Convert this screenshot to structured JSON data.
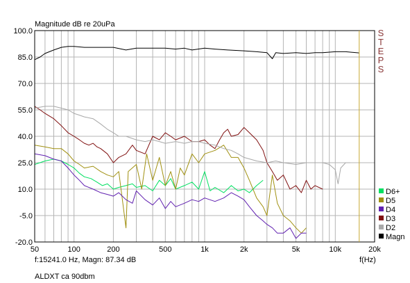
{
  "chart_data": {
    "type": "line",
    "title": "Magnitude dB re 20uPa",
    "xlabel": "f(Hz)",
    "x_scale": "log",
    "xlim": [
      50,
      20000
    ],
    "ylim": [
      -20,
      100
    ],
    "x_ticks": [
      {
        "value": 50,
        "label": "50"
      },
      {
        "value": 100,
        "label": "100"
      },
      {
        "value": 200,
        "label": "200"
      },
      {
        "value": 500,
        "label": "500"
      },
      {
        "value": 1000,
        "label": "1k"
      },
      {
        "value": 2000,
        "label": "2k"
      },
      {
        "value": 5000,
        "label": "5k"
      },
      {
        "value": 10000,
        "label": "10k"
      },
      {
        "value": 20000,
        "label": "20k"
      }
    ],
    "y_ticks": [
      {
        "value": 100,
        "label": "100.0"
      },
      {
        "value": 85,
        "label": "85.0"
      },
      {
        "value": 70,
        "label": "70.0"
      },
      {
        "value": 55,
        "label": "55.0"
      },
      {
        "value": 40,
        "label": "40.0"
      },
      {
        "value": 25,
        "label": "25.0"
      },
      {
        "value": 10,
        "label": "10.0"
      },
      {
        "value": -5,
        "label": "-5.0"
      },
      {
        "value": -20,
        "label": "-20.0"
      }
    ],
    "grid": true,
    "side_label": "STEPS",
    "cursor": {
      "x": 15241,
      "color": "#c8a830"
    },
    "readout": "f:15241.0 Hz, Magn: 87.34 dB",
    "legend_placement": "right",
    "series": [
      {
        "name": "D6+",
        "color": "#00e060",
        "points": [
          [
            50,
            24
          ],
          [
            60,
            26
          ],
          [
            70,
            27
          ],
          [
            80,
            26
          ],
          [
            90,
            24
          ],
          [
            100,
            22
          ],
          [
            110,
            19
          ],
          [
            120,
            17
          ],
          [
            135,
            16
          ],
          [
            150,
            14
          ],
          [
            165,
            12
          ],
          [
            180,
            13
          ],
          [
            200,
            10
          ],
          [
            220,
            11
          ],
          [
            250,
            12
          ],
          [
            280,
            13
          ],
          [
            300,
            11
          ],
          [
            350,
            12
          ],
          [
            400,
            9
          ],
          [
            450,
            15
          ],
          [
            500,
            12
          ],
          [
            550,
            16
          ],
          [
            600,
            10
          ],
          [
            700,
            12
          ],
          [
            800,
            14
          ],
          [
            900,
            10
          ],
          [
            1000,
            20
          ],
          [
            1100,
            9
          ],
          [
            1200,
            11
          ],
          [
            1400,
            8
          ],
          [
            1600,
            12
          ],
          [
            1800,
            9
          ],
          [
            2000,
            10
          ],
          [
            2200,
            8
          ],
          [
            2500,
            12
          ],
          [
            2800,
            15
          ]
        ]
      },
      {
        "name": "D5",
        "color": "#a09010",
        "points": [
          [
            50,
            35
          ],
          [
            60,
            34
          ],
          [
            70,
            33
          ],
          [
            80,
            33
          ],
          [
            90,
            30
          ],
          [
            100,
            26
          ],
          [
            110,
            24
          ],
          [
            120,
            22
          ],
          [
            140,
            23
          ],
          [
            160,
            20
          ],
          [
            180,
            18
          ],
          [
            200,
            17
          ],
          [
            220,
            20
          ],
          [
            250,
            -12
          ],
          [
            260,
            20
          ],
          [
            300,
            24
          ],
          [
            330,
            10
          ],
          [
            360,
            30
          ],
          [
            400,
            15
          ],
          [
            450,
            28
          ],
          [
            500,
            12
          ],
          [
            550,
            20
          ],
          [
            600,
            10
          ],
          [
            650,
            22
          ],
          [
            700,
            18
          ],
          [
            800,
            30
          ],
          [
            900,
            25
          ],
          [
            1000,
            30
          ],
          [
            1200,
            32
          ],
          [
            1400,
            35
          ],
          [
            1600,
            28
          ],
          [
            1800,
            28
          ],
          [
            2000,
            22
          ],
          [
            2200,
            15
          ],
          [
            2500,
            5
          ],
          [
            2800,
            0
          ],
          [
            3000,
            -5
          ],
          [
            3300,
            18
          ],
          [
            3600,
            2
          ],
          [
            4000,
            -5
          ],
          [
            4500,
            -8
          ],
          [
            5000,
            -12
          ],
          [
            5500,
            -15
          ],
          [
            6000,
            -12
          ]
        ]
      },
      {
        "name": "D4",
        "color": "#6020b0",
        "points": [
          [
            50,
            30
          ],
          [
            60,
            29
          ],
          [
            70,
            27
          ],
          [
            80,
            26
          ],
          [
            90,
            22
          ],
          [
            100,
            18
          ],
          [
            110,
            15
          ],
          [
            120,
            12
          ],
          [
            140,
            10
          ],
          [
            160,
            8
          ],
          [
            180,
            7
          ],
          [
            200,
            6
          ],
          [
            220,
            8
          ],
          [
            250,
            4
          ],
          [
            280,
            2
          ],
          [
            300,
            9
          ],
          [
            350,
            4
          ],
          [
            400,
            1
          ],
          [
            450,
            5
          ],
          [
            500,
            -1
          ],
          [
            550,
            3
          ],
          [
            600,
            0
          ],
          [
            700,
            2
          ],
          [
            800,
            4
          ],
          [
            900,
            3
          ],
          [
            1000,
            5
          ],
          [
            1200,
            3
          ],
          [
            1400,
            5
          ],
          [
            1600,
            8
          ],
          [
            1800,
            6
          ],
          [
            2000,
            4
          ],
          [
            2200,
            0
          ],
          [
            2500,
            -5
          ],
          [
            2800,
            -8
          ],
          [
            3000,
            -10
          ],
          [
            3300,
            -12
          ],
          [
            3600,
            -15
          ],
          [
            4000,
            -15
          ],
          [
            4500,
            -12
          ],
          [
            5000,
            -18
          ],
          [
            5500,
            -15
          ],
          [
            6000,
            -15
          ]
        ]
      },
      {
        "name": "D3",
        "color": "#801010",
        "points": [
          [
            50,
            57
          ],
          [
            55,
            55
          ],
          [
            60,
            53
          ],
          [
            70,
            50
          ],
          [
            80,
            46
          ],
          [
            90,
            42
          ],
          [
            100,
            40
          ],
          [
            110,
            38
          ],
          [
            120,
            36
          ],
          [
            130,
            35
          ],
          [
            140,
            36
          ],
          [
            150,
            34
          ],
          [
            160,
            33
          ],
          [
            180,
            30
          ],
          [
            200,
            25
          ],
          [
            220,
            28
          ],
          [
            250,
            30
          ],
          [
            280,
            35
          ],
          [
            300,
            32
          ],
          [
            350,
            30
          ],
          [
            400,
            40
          ],
          [
            450,
            38
          ],
          [
            500,
            42
          ],
          [
            550,
            40
          ],
          [
            600,
            38
          ],
          [
            700,
            40
          ],
          [
            800,
            37
          ],
          [
            900,
            37
          ],
          [
            1000,
            38
          ],
          [
            1100,
            35
          ],
          [
            1200,
            33
          ],
          [
            1300,
            38
          ],
          [
            1400,
            42
          ],
          [
            1500,
            44
          ],
          [
            1600,
            40
          ],
          [
            1800,
            41
          ],
          [
            2000,
            45
          ],
          [
            2200,
            42
          ],
          [
            2500,
            38
          ],
          [
            2800,
            32
          ],
          [
            3000,
            25
          ],
          [
            3300,
            20
          ],
          [
            3600,
            15
          ],
          [
            4000,
            18
          ],
          [
            4500,
            10
          ],
          [
            5000,
            12
          ],
          [
            5500,
            8
          ],
          [
            6000,
            15
          ],
          [
            6500,
            10
          ],
          [
            7000,
            12
          ],
          [
            8000,
            10
          ]
        ]
      },
      {
        "name": "D2",
        "color": "#a8a8a8",
        "points": [
          [
            50,
            56
          ],
          [
            60,
            57
          ],
          [
            70,
            57
          ],
          [
            80,
            56
          ],
          [
            90,
            55
          ],
          [
            100,
            53
          ],
          [
            110,
            52
          ],
          [
            120,
            51
          ],
          [
            140,
            50
          ],
          [
            160,
            47
          ],
          [
            180,
            44
          ],
          [
            200,
            42
          ],
          [
            220,
            40
          ],
          [
            250,
            40
          ],
          [
            300,
            38
          ],
          [
            350,
            37
          ],
          [
            400,
            38
          ],
          [
            450,
            37
          ],
          [
            500,
            36
          ],
          [
            600,
            37
          ],
          [
            700,
            36
          ],
          [
            800,
            37
          ],
          [
            900,
            37
          ],
          [
            1000,
            36
          ],
          [
            1200,
            35
          ],
          [
            1400,
            33
          ],
          [
            1600,
            32
          ],
          [
            1800,
            30
          ],
          [
            2000,
            28
          ],
          [
            2500,
            26
          ],
          [
            3000,
            25
          ],
          [
            3500,
            26
          ],
          [
            4000,
            25
          ],
          [
            5000,
            24
          ],
          [
            6000,
            25
          ],
          [
            7000,
            25
          ],
          [
            8000,
            25
          ],
          [
            9000,
            24
          ],
          [
            10000,
            21
          ],
          [
            10500,
            13
          ],
          [
            11000,
            22
          ],
          [
            12000,
            25
          ],
          [
            13000,
            25
          ]
        ]
      },
      {
        "name": "Magn",
        "color": "#000000",
        "points": [
          [
            50,
            83.5
          ],
          [
            55,
            85
          ],
          [
            60,
            87
          ],
          [
            70,
            89
          ],
          [
            80,
            90.5
          ],
          [
            90,
            91
          ],
          [
            100,
            91
          ],
          [
            120,
            90.5
          ],
          [
            150,
            90.5
          ],
          [
            200,
            90.5
          ],
          [
            250,
            89
          ],
          [
            300,
            90
          ],
          [
            400,
            90
          ],
          [
            500,
            90
          ],
          [
            600,
            89.5
          ],
          [
            700,
            90
          ],
          [
            800,
            89
          ],
          [
            1000,
            90
          ],
          [
            1200,
            89.5
          ],
          [
            1500,
            89
          ],
          [
            2000,
            88.5
          ],
          [
            2500,
            88
          ],
          [
            3000,
            87.5
          ],
          [
            3300,
            84
          ],
          [
            3500,
            87.5
          ],
          [
            4000,
            87
          ],
          [
            5000,
            87.5
          ],
          [
            6000,
            87
          ],
          [
            7000,
            87.5
          ],
          [
            8000,
            87.5
          ],
          [
            10000,
            88
          ],
          [
            12000,
            88
          ],
          [
            15241,
            87.34
          ]
        ]
      }
    ]
  },
  "legend": [
    {
      "name": "D6+",
      "color": "#00e060"
    },
    {
      "name": "D5",
      "color": "#a09010"
    },
    {
      "name": "D4",
      "color": "#6020b0"
    },
    {
      "name": "D3",
      "color": "#801010"
    },
    {
      "name": "D2",
      "color": "#a8a8a8"
    },
    {
      "name": "Magn",
      "color": "#000000"
    }
  ],
  "footer": "ALDXT ca 90dbm"
}
